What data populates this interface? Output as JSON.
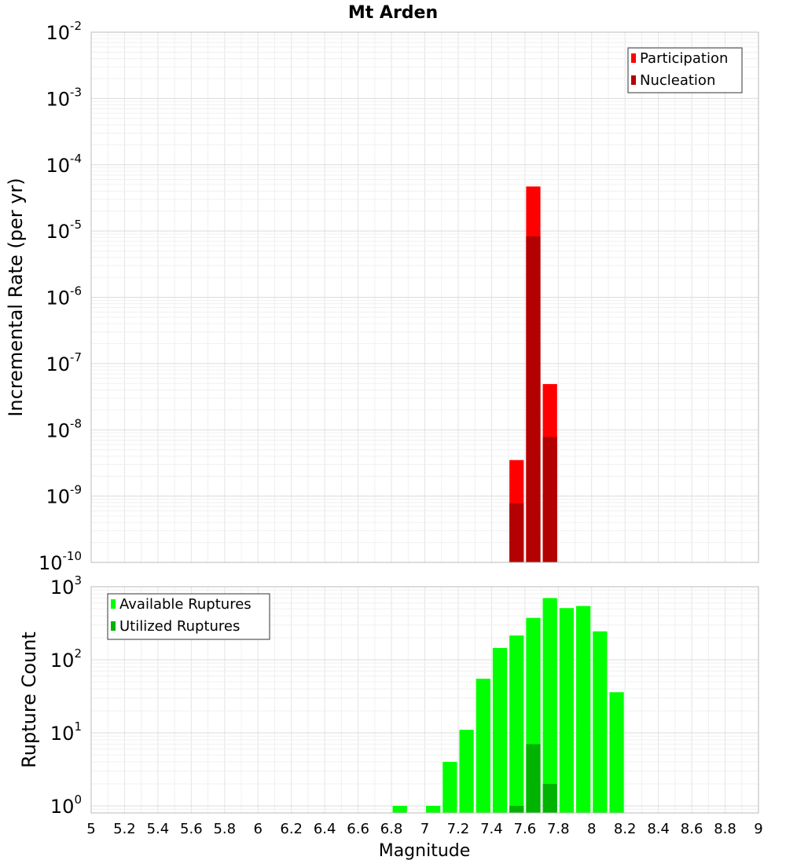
{
  "chart_data": {
    "title": "Mt Arden",
    "xlabel": "Magnitude",
    "x_ticks": [
      "5",
      "5.2",
      "5.4",
      "5.6",
      "5.8",
      "6",
      "6.2",
      "6.4",
      "6.6",
      "6.8",
      "7",
      "7.2",
      "7.4",
      "7.6",
      "7.8",
      "8",
      "8.2",
      "8.4",
      "8.6",
      "8.8",
      "9"
    ],
    "xlim": [
      5,
      9
    ],
    "bin_width": 0.1,
    "panels": [
      {
        "type": "bar",
        "yscale": "log",
        "ylabel": "Incremental Rate (per yr)",
        "ylim": [
          1e-10,
          0.01
        ],
        "y_tick_exponents": [
          -10,
          -9,
          -8,
          -7,
          -6,
          -5,
          -4,
          -3,
          -2
        ],
        "legend_position": "top-right",
        "series": [
          {
            "name": "Participation",
            "color": "#ff0000",
            "points": [
              [
                7.55,
                3.5e-09
              ],
              [
                7.65,
                4.7e-05
              ],
              [
                7.75,
                4.9e-08
              ]
            ]
          },
          {
            "name": "Nucleation",
            "color": "#b30000",
            "points": [
              [
                7.55,
                7.8e-10
              ],
              [
                7.65,
                8.3e-06
              ],
              [
                7.75,
                7.8e-09
              ]
            ]
          }
        ]
      },
      {
        "type": "bar",
        "yscale": "log",
        "ylabel": "Rupture Count",
        "ylim": [
          0.8,
          1000
        ],
        "y_tick_exponents": [
          0,
          1,
          2,
          3
        ],
        "legend_position": "top-left",
        "series": [
          {
            "name": "Available Ruptures",
            "color": "#00ff00",
            "points": [
              [
                6.85,
                1
              ],
              [
                7.05,
                1
              ],
              [
                7.15,
                4
              ],
              [
                7.25,
                11
              ],
              [
                7.35,
                55
              ],
              [
                7.45,
                145
              ],
              [
                7.55,
                215
              ],
              [
                7.65,
                375
              ],
              [
                7.75,
                700
              ],
              [
                7.85,
                510
              ],
              [
                7.95,
                545
              ],
              [
                8.05,
                245
              ],
              [
                8.15,
                36
              ]
            ]
          },
          {
            "name": "Utilized Ruptures",
            "color": "#00b300",
            "points": [
              [
                7.55,
                1
              ],
              [
                7.65,
                7
              ],
              [
                7.75,
                2
              ]
            ]
          }
        ]
      }
    ]
  }
}
